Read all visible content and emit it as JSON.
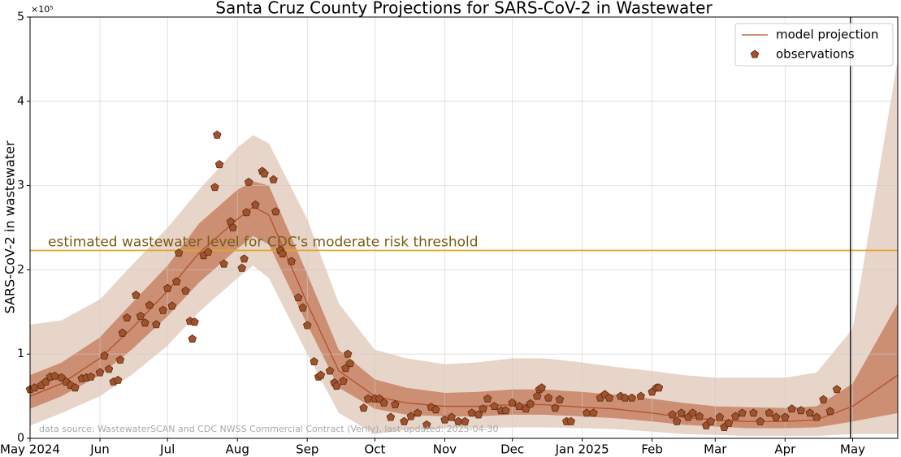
{
  "chart_data": {
    "type": "line",
    "title": "Santa Cruz County Projections for SARS-CoV-2 in Wastewater",
    "y_label": "SARS-CoV-2 in wastewater",
    "y_scale_label": "×10⁵",
    "ylim": [
      0,
      5
    ],
    "yticks": [
      0,
      1,
      2,
      3,
      4,
      5
    ],
    "xlim": [
      "2024-05-01",
      "2025-05-21"
    ],
    "xticks": [
      {
        "value": "2024-05-01",
        "label": "May 2024"
      },
      {
        "value": "2024-06-01",
        "label": "Jun"
      },
      {
        "value": "2024-07-01",
        "label": "Jul"
      },
      {
        "value": "2024-08-01",
        "label": "Aug"
      },
      {
        "value": "2024-09-01",
        "label": "Sep"
      },
      {
        "value": "2024-10-01",
        "label": "Oct"
      },
      {
        "value": "2024-11-01",
        "label": "Nov"
      },
      {
        "value": "2024-12-01",
        "label": "Dec"
      },
      {
        "value": "2025-01-01",
        "label": "Jan 2025"
      },
      {
        "value": "2025-02-01",
        "label": "Feb"
      },
      {
        "value": "2025-03-01",
        "label": "Mar"
      },
      {
        "value": "2025-04-01",
        "label": "Apr"
      },
      {
        "value": "2025-05-01",
        "label": "May"
      }
    ],
    "grid": true,
    "legend": "upper right",
    "bands": [
      {
        "color": "#e8d5ca",
        "x": [
          "2024-05-01",
          "2024-05-15",
          "2024-06-01",
          "2024-06-15",
          "2024-07-01",
          "2024-07-15",
          "2024-08-01",
          "2024-08-08",
          "2024-08-15",
          "2024-09-01",
          "2024-09-15",
          "2024-10-01",
          "2024-10-15",
          "2024-11-01",
          "2024-11-15",
          "2024-12-01",
          "2024-12-15",
          "2025-01-01",
          "2025-01-15",
          "2025-02-01",
          "2025-02-15",
          "2025-03-01",
          "2025-03-15",
          "2025-04-01",
          "2025-04-15",
          "2025-05-01",
          "2025-05-21"
        ],
        "lower": [
          0.15,
          0.3,
          0.5,
          0.75,
          1.1,
          1.5,
          1.9,
          2.05,
          1.9,
          1.0,
          0.3,
          0.05,
          0.1,
          0.12,
          0.12,
          0.13,
          0.13,
          0.12,
          0.11,
          0.08,
          0.05,
          0.04,
          0.03,
          0.03,
          0.03,
          0.05,
          0.05
        ],
        "upper": [
          1.35,
          1.4,
          1.65,
          2.05,
          2.5,
          2.95,
          3.45,
          3.6,
          3.5,
          2.6,
          1.6,
          1.05,
          0.95,
          0.88,
          0.9,
          0.95,
          0.95,
          0.9,
          0.85,
          0.8,
          0.75,
          0.72,
          0.72,
          0.72,
          0.78,
          1.3,
          4.5
        ]
      },
      {
        "color": "#cc8f74",
        "x": [
          "2024-05-01",
          "2024-05-15",
          "2024-06-01",
          "2024-06-15",
          "2024-07-01",
          "2024-07-15",
          "2024-08-01",
          "2024-08-08",
          "2024-08-15",
          "2024-09-01",
          "2024-09-15",
          "2024-10-01",
          "2024-10-15",
          "2024-11-01",
          "2024-11-15",
          "2024-12-01",
          "2024-12-15",
          "2025-01-01",
          "2025-01-15",
          "2025-02-01",
          "2025-02-15",
          "2025-03-01",
          "2025-03-15",
          "2025-04-01",
          "2025-04-15",
          "2025-05-01",
          "2025-05-21"
        ],
        "lower": [
          0.35,
          0.5,
          0.75,
          1.05,
          1.45,
          1.85,
          2.25,
          2.4,
          2.3,
          1.35,
          0.6,
          0.35,
          0.28,
          0.26,
          0.26,
          0.28,
          0.28,
          0.26,
          0.24,
          0.2,
          0.16,
          0.14,
          0.12,
          0.12,
          0.13,
          0.2,
          0.3
        ],
        "upper": [
          0.75,
          0.9,
          1.2,
          1.6,
          2.05,
          2.55,
          2.95,
          3.05,
          3.0,
          1.95,
          1.05,
          0.7,
          0.6,
          0.54,
          0.55,
          0.58,
          0.58,
          0.55,
          0.52,
          0.47,
          0.42,
          0.38,
          0.37,
          0.36,
          0.38,
          0.65,
          1.6
        ]
      }
    ],
    "series": [
      {
        "name": "model projection",
        "type": "line",
        "color": "#b0502a",
        "x": [
          "2024-05-01",
          "2024-05-15",
          "2024-06-01",
          "2024-06-15",
          "2024-07-01",
          "2024-07-15",
          "2024-08-01",
          "2024-08-08",
          "2024-08-15",
          "2024-09-01",
          "2024-09-15",
          "2024-10-01",
          "2024-10-15",
          "2024-11-01",
          "2024-11-15",
          "2024-12-01",
          "2024-12-15",
          "2025-01-01",
          "2025-01-15",
          "2025-02-01",
          "2025-02-15",
          "2025-03-01",
          "2025-03-15",
          "2025-04-01",
          "2025-04-15",
          "2025-05-01",
          "2025-05-21"
        ],
        "values": [
          0.5,
          0.65,
          0.95,
          1.3,
          1.75,
          2.2,
          2.6,
          2.75,
          2.65,
          1.6,
          0.8,
          0.5,
          0.42,
          0.38,
          0.38,
          0.4,
          0.4,
          0.37,
          0.35,
          0.3,
          0.25,
          0.22,
          0.2,
          0.2,
          0.22,
          0.38,
          0.75
        ]
      },
      {
        "name": "observations",
        "type": "scatter",
        "color": "#a0522d",
        "x": [
          "2024-05-01",
          "2024-05-03",
          "2024-05-06",
          "2024-05-08",
          "2024-05-10",
          "2024-05-12",
          "2024-05-15",
          "2024-05-17",
          "2024-05-19",
          "2024-05-21",
          "2024-05-24",
          "2024-05-26",
          "2024-05-28",
          "2024-06-01",
          "2024-06-03",
          "2024-06-05",
          "2024-06-07",
          "2024-06-09",
          "2024-06-10",
          "2024-06-11",
          "2024-06-13",
          "2024-06-17",
          "2024-06-19",
          "2024-06-21",
          "2024-06-23",
          "2024-06-26",
          "2024-06-29",
          "2024-07-01",
          "2024-07-03",
          "2024-07-05",
          "2024-07-06",
          "2024-07-09",
          "2024-07-11",
          "2024-07-12",
          "2024-07-13",
          "2024-07-17",
          "2024-07-19",
          "2024-07-22",
          "2024-07-23",
          "2024-07-24",
          "2024-07-26",
          "2024-07-29",
          "2024-07-30",
          "2024-08-03",
          "2024-08-04",
          "2024-08-05",
          "2024-08-06",
          "2024-08-09",
          "2024-08-12",
          "2024-08-13",
          "2024-08-17",
          "2024-08-18",
          "2024-08-20",
          "2024-08-21",
          "2024-08-25",
          "2024-08-28",
          "2024-08-30",
          "2024-09-01",
          "2024-09-04",
          "2024-09-06",
          "2024-09-07",
          "2024-09-11",
          "2024-09-13",
          "2024-09-14",
          "2024-09-17",
          "2024-09-18",
          "2024-09-19",
          "2024-09-20",
          "2024-09-26",
          "2024-09-28",
          "2024-10-01",
          "2024-10-03",
          "2024-10-05",
          "2024-10-08",
          "2024-10-10",
          "2024-10-14",
          "2024-10-17",
          "2024-10-20",
          "2024-10-24",
          "2024-10-26",
          "2024-10-28",
          "2024-11-01",
          "2024-11-04",
          "2024-11-07",
          "2024-11-10",
          "2024-11-13",
          "2024-11-16",
          "2024-11-18",
          "2024-11-20",
          "2024-11-23",
          "2024-11-26",
          "2024-11-28",
          "2024-12-01",
          "2024-12-04",
          "2024-12-07",
          "2024-12-09",
          "2024-12-12",
          "2024-12-13",
          "2024-12-14",
          "2024-12-17",
          "2024-12-20",
          "2024-12-22",
          "2024-12-25",
          "2024-12-27",
          "2025-01-03",
          "2025-01-06",
          "2025-01-09",
          "2025-01-11",
          "2025-01-13",
          "2025-01-18",
          "2025-01-20",
          "2025-01-23",
          "2025-01-27",
          "2025-02-01",
          "2025-02-03",
          "2025-02-04",
          "2025-02-10",
          "2025-02-12",
          "2025-02-14",
          "2025-02-17",
          "2025-02-19",
          "2025-02-22",
          "2025-02-25",
          "2025-02-27",
          "2025-03-03",
          "2025-03-05",
          "2025-03-07",
          "2025-03-10",
          "2025-03-13",
          "2025-03-18",
          "2025-03-21",
          "2025-03-25",
          "2025-03-28",
          "2025-04-01",
          "2025-04-04",
          "2025-04-08",
          "2025-04-12",
          "2025-04-15",
          "2025-04-18",
          "2025-04-21",
          "2025-04-24"
        ],
        "values": [
          0.58,
          0.6,
          0.63,
          0.67,
          0.73,
          0.74,
          0.72,
          0.67,
          0.63,
          0.6,
          0.71,
          0.72,
          0.73,
          0.78,
          0.98,
          0.82,
          0.67,
          0.69,
          0.93,
          1.25,
          1.43,
          1.7,
          1.45,
          1.37,
          1.58,
          1.35,
          1.52,
          1.78,
          1.57,
          1.86,
          2.2,
          1.75,
          1.39,
          1.18,
          1.38,
          2.17,
          2.21,
          2.98,
          3.6,
          3.25,
          2.07,
          2.57,
          2.5,
          2.02,
          2.13,
          2.68,
          3.04,
          2.77,
          3.17,
          3.14,
          3.07,
          2.69,
          2.23,
          2.19,
          2.1,
          1.67,
          1.55,
          1.34,
          0.91,
          0.73,
          0.75,
          0.8,
          0.66,
          0.62,
          0.68,
          0.83,
          1.0,
          0.89,
          0.36,
          0.47,
          0.47,
          0.47,
          0.42,
          0.25,
          0.4,
          0.2,
          0.26,
          0.3,
          0.16,
          0.37,
          0.34,
          0.22,
          0.25,
          0.2,
          0.2,
          0.3,
          0.28,
          0.35,
          0.47,
          0.38,
          0.33,
          0.33,
          0.42,
          0.38,
          0.35,
          0.41,
          0.5,
          0.58,
          0.6,
          0.48,
          0.36,
          0.46,
          0.2,
          0.2,
          0.3,
          0.3,
          0.48,
          0.52,
          0.48,
          0.5,
          0.48,
          0.48,
          0.5,
          0.55,
          0.6,
          0.6,
          0.28,
          0.2,
          0.3,
          0.25,
          0.3,
          0.26,
          0.15,
          0.2,
          0.25,
          0.13,
          0.18,
          0.26,
          0.3,
          0.3,
          0.2,
          0.3,
          0.25,
          0.25,
          0.35,
          0.33,
          0.3,
          0.25,
          0.46,
          0.32,
          0.58
        ]
      }
    ],
    "threshold": {
      "value": 2.23,
      "label": "estimated wastewater level for CDC's moderate risk threshold",
      "color": "#e0a526",
      "label_color": "#7a5c12"
    },
    "vline": {
      "x": "2025-04-30",
      "color": "#222222"
    },
    "note": "data source: WastewaterSCAN and CDC NWSS Commercial Contract (Verily), last updated: 2025-04-30"
  }
}
